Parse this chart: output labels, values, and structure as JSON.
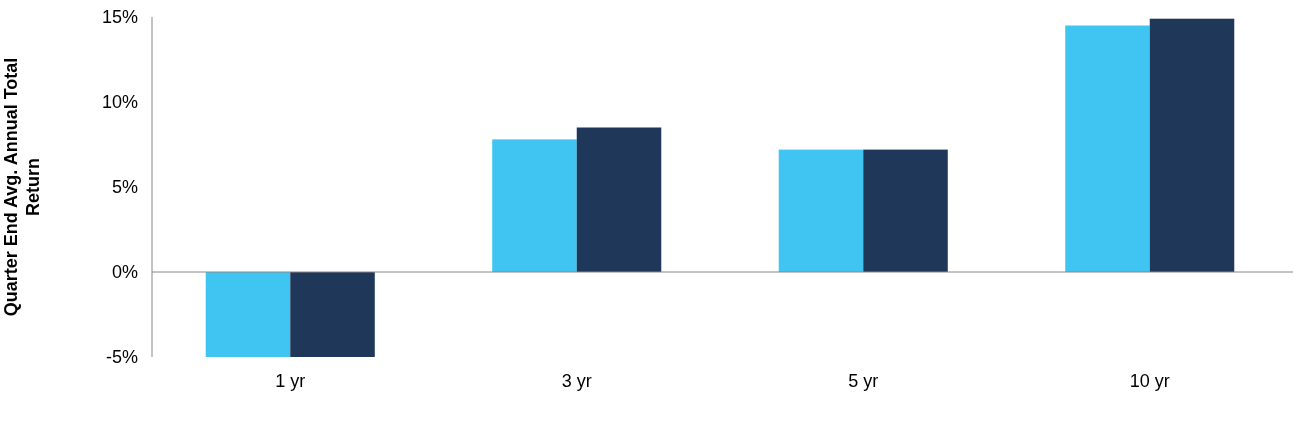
{
  "chart_data": {
    "type": "bar",
    "ylabel": "Quarter End Avg. Annual Total Return",
    "categories": [
      "1 yr",
      "3 yr",
      "5 yr",
      "10 yr"
    ],
    "series": [
      {
        "color": "#40c4f2",
        "values": [
          -5,
          7.8,
          7.2,
          14.5
        ]
      },
      {
        "color": "#1f3758",
        "values": [
          -5,
          8.5,
          7.2,
          14.9
        ]
      }
    ],
    "ylim": [
      -5,
      15
    ],
    "yticks": [
      {
        "value": -5,
        "label": "-5%"
      },
      {
        "value": 0,
        "label": "0%"
      },
      {
        "value": 5,
        "label": "5%"
      },
      {
        "value": 10,
        "label": "10%"
      },
      {
        "value": 15,
        "label": "15%"
      }
    ],
    "legend": false
  }
}
